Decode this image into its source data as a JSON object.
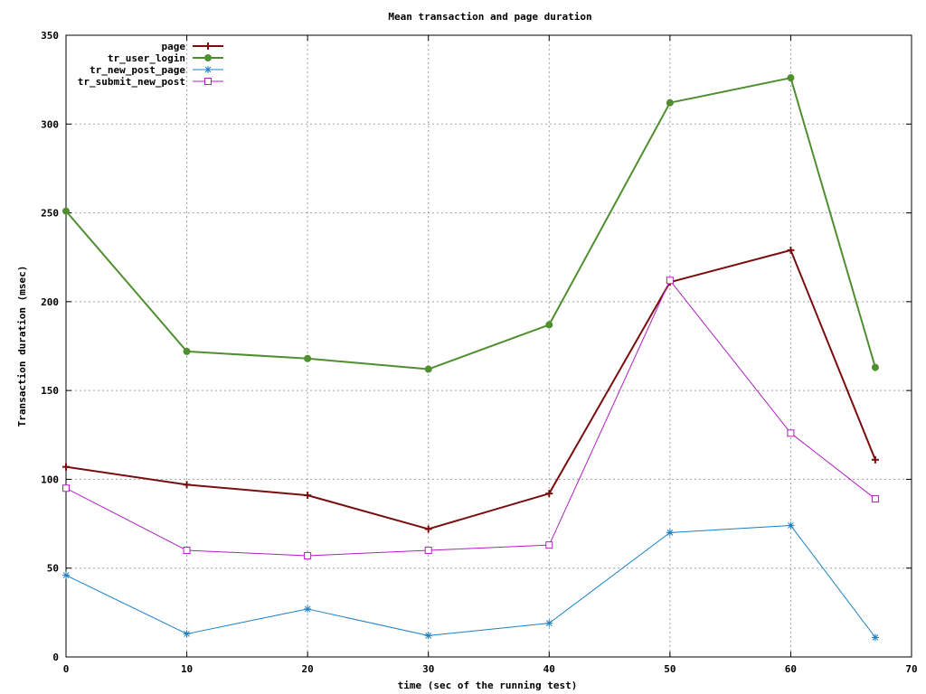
{
  "chart_data": {
    "type": "line",
    "title": "Mean transaction and page duration",
    "xlabel": "time (sec of the running test)",
    "ylabel": "Transaction duration (msec)",
    "xlim": [
      0,
      70
    ],
    "ylim": [
      0,
      350
    ],
    "xticks": [
      0,
      10,
      20,
      30,
      40,
      50,
      60,
      70
    ],
    "yticks": [
      0,
      50,
      100,
      150,
      200,
      250,
      300,
      350
    ],
    "grid": true,
    "legend_position": "top-left",
    "x": [
      0,
      10,
      20,
      30,
      40,
      50,
      60,
      67
    ],
    "series": [
      {
        "name": "page",
        "color": "#7a0e0e",
        "marker": "plus",
        "line_width": 2,
        "values": [
          107,
          97,
          91,
          72,
          92,
          211,
          229,
          111
        ]
      },
      {
        "name": "tr_user_login",
        "color": "#4f8f2f",
        "marker": "filled-circle",
        "line_width": 2,
        "values": [
          251,
          172,
          168,
          162,
          187,
          312,
          326,
          163
        ]
      },
      {
        "name": "tr_new_post_page",
        "color": "#1a7fc4",
        "marker": "asterisk",
        "line_width": 1,
        "values": [
          46,
          13,
          27,
          12,
          19,
          70,
          74,
          11
        ]
      },
      {
        "name": "tr_submit_new_post",
        "color": "#b020c0",
        "marker": "open-square",
        "line_width": 1,
        "values": [
          95,
          60,
          57,
          60,
          63,
          212,
          126,
          89
        ]
      }
    ]
  }
}
